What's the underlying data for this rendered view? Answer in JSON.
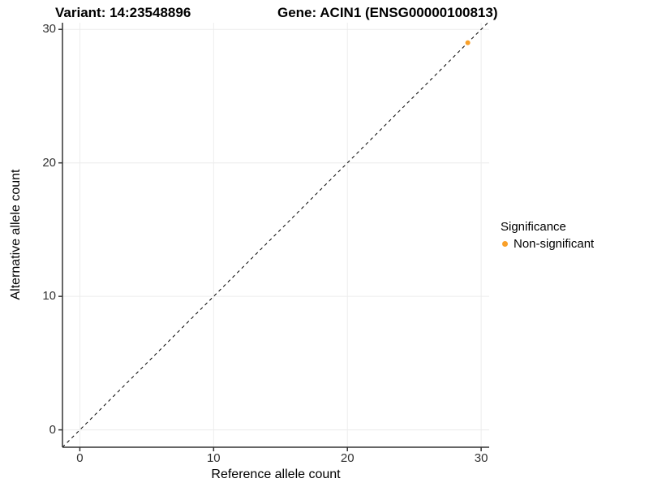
{
  "titles": {
    "left": "Variant: 14:23548896",
    "right": "Gene: ACIN1 (ENSG00000100813)"
  },
  "legend": {
    "title": "Significance",
    "items": [
      {
        "label": "Non-significant",
        "color": "#F9A029"
      }
    ]
  },
  "chart_data": {
    "type": "scatter",
    "title": "Variant: 14:23548896    Gene: ACIN1 (ENSG00000100813)",
    "xlabel": "Reference allele count",
    "ylabel": "Alternative allele count",
    "xlim": [
      -1.3,
      30.6
    ],
    "ylim": [
      -1.3,
      30.5
    ],
    "xticks": [
      0,
      10,
      20,
      30
    ],
    "yticks": [
      0,
      10,
      20,
      30
    ],
    "grid": "major",
    "grid_color": "#ECECEC",
    "axis_line_color": "#333333",
    "tick_label_color": "#333333",
    "background": "#FFFFFF",
    "reference_line": {
      "type": "identity",
      "style": "dashed",
      "color": "#000000"
    },
    "legend_position": "right",
    "series": [
      {
        "name": "Non-significant",
        "color": "#F9A029",
        "marker_radius": 3,
        "points": [
          [
            29,
            29
          ]
        ]
      }
    ]
  }
}
